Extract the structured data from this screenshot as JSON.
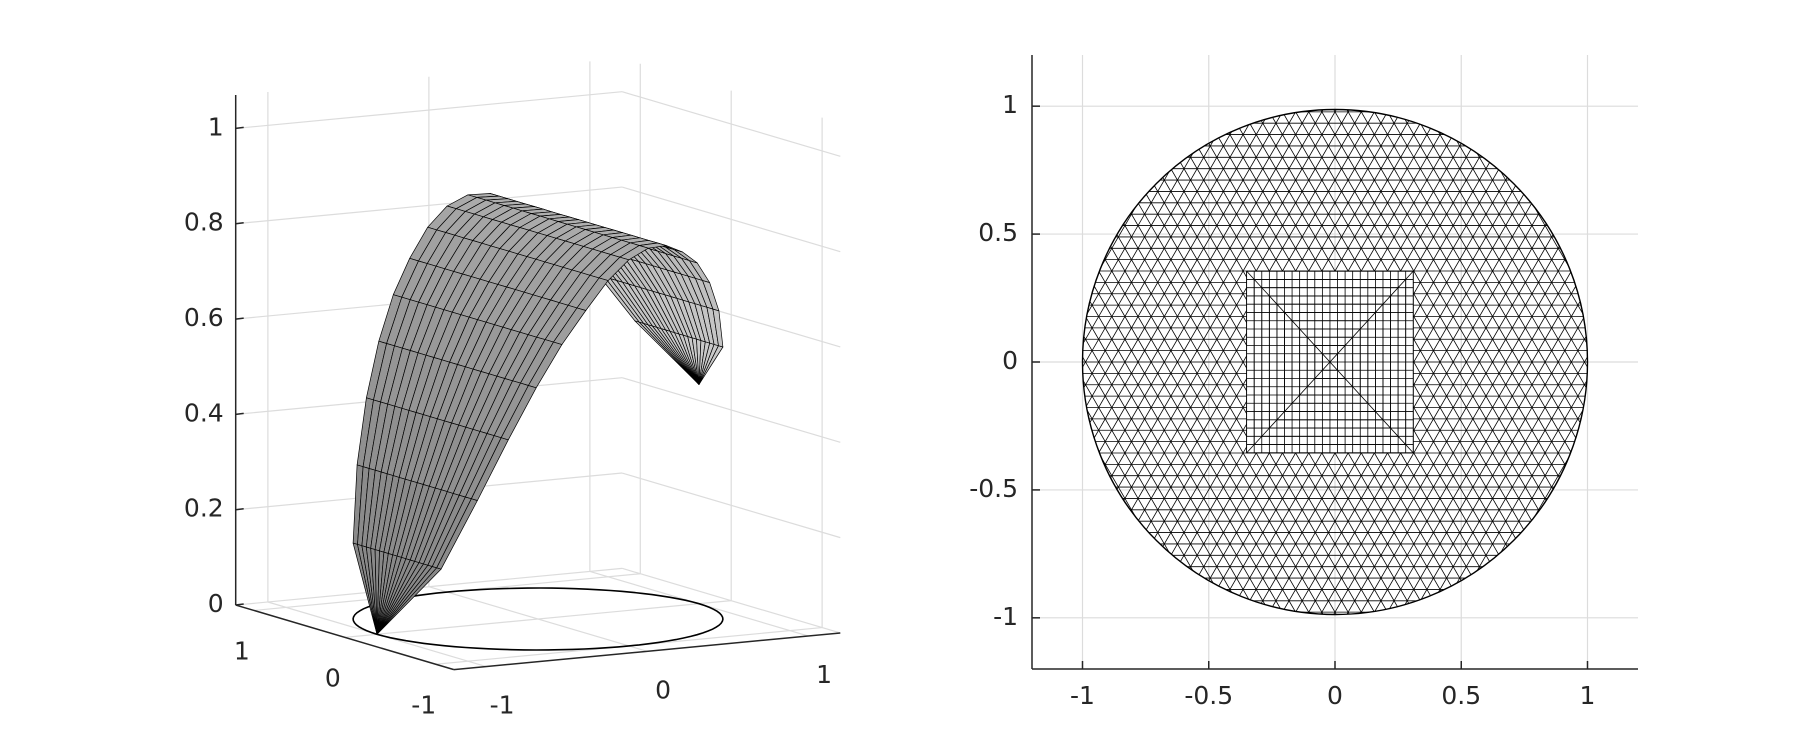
{
  "chart_data": [
    {
      "type": "surface3d",
      "x": [
        -1,
        -0.875,
        -0.75,
        -0.625,
        -0.5,
        -0.375,
        -0.25,
        -0.125,
        0,
        0.125,
        0.25,
        0.375,
        0.5,
        0.625,
        0.75,
        0.875,
        1
      ],
      "z": [
        0,
        0.16,
        0.31,
        0.44,
        0.55,
        0.64,
        0.71,
        0.77,
        0.81,
        0.83,
        0.83,
        0.81,
        0.78,
        0.73,
        0.66,
        0.57,
        0.46
      ],
      "radius": 1,
      "xlim": [
        -1.2,
        1.2
      ],
      "ylim": [
        -1.2,
        1.2
      ],
      "zlim": [
        0,
        1.07
      ],
      "xticks": [
        -1,
        0,
        1
      ],
      "yticks": [
        -1,
        0,
        1
      ],
      "zticks": [
        0,
        0.2,
        0.4,
        0.6,
        0.8,
        1
      ],
      "grid": true,
      "color": "#000000"
    },
    {
      "type": "mesh",
      "radius": 1,
      "xlim": [
        -1.2,
        1.2
      ],
      "ylim": [
        -1.2,
        1.2
      ],
      "xticks": [
        -1,
        -0.5,
        0,
        0.5,
        1
      ],
      "yticks": [
        -1,
        -0.5,
        0,
        0.5,
        1
      ],
      "grid": true,
      "color": "#000000"
    }
  ]
}
